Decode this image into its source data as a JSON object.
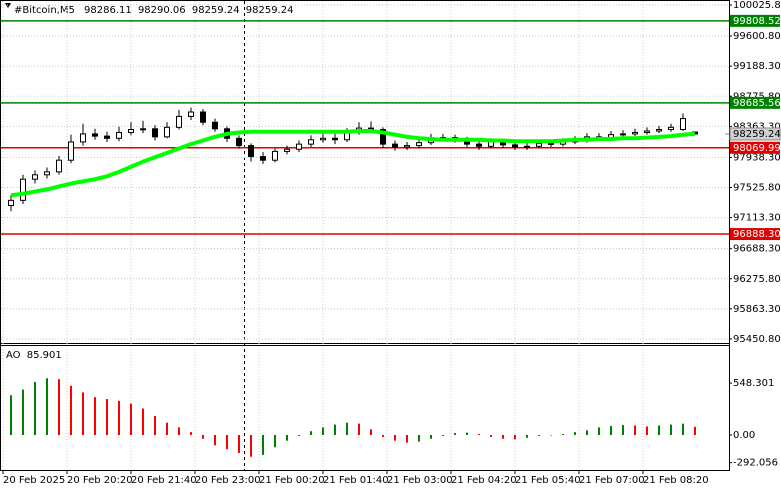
{
  "chart_data": {
    "type": "candlestick",
    "symbol": "#Bitcoin,M5",
    "open": [
      97280,
      97350,
      97640,
      97700,
      97740,
      97900,
      98150,
      98260,
      98230,
      98200,
      98280,
      98320,
      98330,
      98220,
      98350,
      98500,
      98560,
      98420,
      98330,
      98200,
      98100,
      97950,
      97900,
      98020,
      98050,
      98120,
      98180,
      98200,
      98180,
      98280,
      98340,
      98320,
      98120,
      98080,
      98100,
      98140,
      98200,
      98210,
      98180,
      98120,
      98090,
      98150,
      98110,
      98080,
      98090,
      98130,
      98120,
      98150,
      98170,
      98220,
      98210,
      98250,
      98260,
      98280,
      98300,
      98320,
      98320,
      98286.11
    ],
    "high": [
      97420,
      97700,
      97760,
      97800,
      97960,
      98250,
      98400,
      98330,
      98290,
      98360,
      98420,
      98440,
      98380,
      98420,
      98590,
      98620,
      98600,
      98470,
      98360,
      98240,
      98130,
      98010,
      98060,
      98100,
      98170,
      98240,
      98280,
      98260,
      98340,
      98420,
      98430,
      98350,
      98170,
      98150,
      98190,
      98260,
      98260,
      98250,
      98220,
      98160,
      98200,
      98190,
      98150,
      98140,
      98170,
      98170,
      98200,
      98230,
      98270,
      98270,
      98300,
      98310,
      98330,
      98350,
      98370,
      98400,
      98540,
      98290.06
    ],
    "low": [
      97200,
      97300,
      97580,
      97650,
      97700,
      97860,
      98100,
      98180,
      98150,
      98160,
      98240,
      98270,
      98170,
      98200,
      98320,
      98450,
      98380,
      98290,
      98150,
      98060,
      97880,
      97850,
      97870,
      97980,
      98010,
      98080,
      98140,
      98120,
      98150,
      98250,
      98280,
      98070,
      98030,
      98040,
      98060,
      98110,
      98160,
      98140,
      98080,
      98040,
      98060,
      98070,
      98040,
      98040,
      98060,
      98080,
      98090,
      98120,
      98140,
      98170,
      98180,
      98210,
      98230,
      98250,
      98270,
      98290,
      98300,
      98259.24
    ],
    "close": [
      97350,
      97640,
      97700,
      97740,
      97900,
      98150,
      98260,
      98230,
      98200,
      98280,
      98320,
      98330,
      98220,
      98350,
      98500,
      98560,
      98420,
      98330,
      98200,
      98100,
      97950,
      97900,
      98020,
      98050,
      98120,
      98180,
      98200,
      98180,
      98280,
      98340,
      98320,
      98120,
      98080,
      98100,
      98140,
      98200,
      98210,
      98180,
      98120,
      98090,
      98150,
      98110,
      98080,
      98090,
      98130,
      98120,
      98150,
      98170,
      98220,
      98210,
      98250,
      98260,
      98280,
      98300,
      98320,
      98350,
      98470,
      98259.24
    ],
    "ylim": [
      95450.8,
      100025.84
    ],
    "yticks": [
      100025.84,
      {
        "value": 99600.8,
        "label": "99600.80"
      },
      {
        "value": 99188.3,
        "label": "99188.30"
      },
      {
        "value": 98775.8,
        "label": "98775.80"
      },
      {
        "value": 98363.3,
        "label": "98363.30"
      },
      {
        "value": 97938.3,
        "label": "97938.30"
      },
      {
        "value": 97525.8,
        "label": "97525.80"
      },
      {
        "value": 97113.3,
        "label": "97113.30"
      },
      {
        "value": 96688.3,
        "label": "96688.30"
      },
      {
        "value": 96275.8,
        "label": "96275.80"
      },
      {
        "value": 95863.3,
        "label": "95863.30"
      },
      {
        "value": 95450.8,
        "label": "95450.80"
      }
    ],
    "grid": true,
    "ma": {
      "color": "#00ff00",
      "values": [
        97420,
        97440,
        97470,
        97500,
        97540,
        97580,
        97610,
        97640,
        97680,
        97740,
        97810,
        97880,
        97940,
        98000,
        98060,
        98120,
        98170,
        98220,
        98260,
        98280,
        98290,
        98290,
        98290,
        98290,
        98290,
        98290,
        98290,
        98290,
        98290,
        98300,
        98300,
        98280,
        98250,
        98220,
        98200,
        98190,
        98180,
        98180,
        98180,
        98180,
        98170,
        98170,
        98160,
        98160,
        98160,
        98160,
        98170,
        98180,
        98180,
        98190,
        98190,
        98200,
        98200,
        98210,
        98220,
        98230,
        98250,
        98260
      ]
    },
    "levels": [
      {
        "value": 99808.52,
        "color": "#008000"
      },
      {
        "value": 98685.56,
        "color": "#008000"
      },
      {
        "value": 98069.99,
        "color": "#e00000"
      },
      {
        "value": 96888.3,
        "label": "96888.30",
        "color": "#e00000"
      }
    ],
    "xticks": [
      "20 Feb 2025",
      "20 Feb 20:20",
      "20 Feb 21:40",
      "20 Feb 23:00",
      "21 Feb 00:20",
      "21 Feb 01:40",
      "21 Feb 03:00",
      "21 Feb 04:20",
      "21 Feb 05:40",
      "21 Feb 07:00",
      "21 Feb 08:20"
    ],
    "indicator": {
      "type": "bar",
      "name": "AO",
      "up_color": "#008000",
      "down_color": "#ff0000",
      "values": [
        420,
        480,
        560,
        600,
        590,
        520,
        450,
        400,
        380,
        360,
        330,
        280,
        200,
        130,
        80,
        30,
        -40,
        -110,
        -150,
        -190,
        -230,
        -210,
        -130,
        -60,
        -10,
        40,
        80,
        110,
        130,
        120,
        60,
        -20,
        -60,
        -80,
        -70,
        -40,
        -10,
        20,
        25,
        10,
        -20,
        -40,
        -45,
        -30,
        -10,
        0,
        10,
        30,
        50,
        80,
        95,
        105,
        100,
        90,
        100,
        110,
        120,
        85.901
      ],
      "ylim": [
        -370,
        930
      ],
      "yticks": [
        548.301,
        {
          "value": 0,
          "label": "0.00"
        },
        -292.056
      ]
    }
  }
}
